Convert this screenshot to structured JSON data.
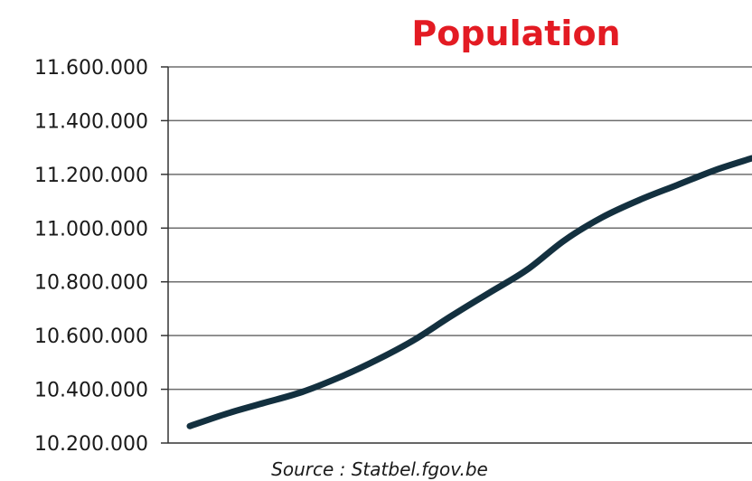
{
  "chart_data": {
    "type": "line",
    "title": "Population",
    "xlabel": "",
    "ylabel": "",
    "source": "Source : Statbel.fgov.be",
    "ylim": [
      10200000,
      11600000
    ],
    "yticks": [
      10200000,
      10400000,
      10600000,
      10800000,
      11000000,
      11200000,
      11400000,
      11600000
    ],
    "ytick_labels": [
      "10.200.000",
      "10.400.000",
      "10.600.000",
      "10.800.000",
      "11.000.000",
      "11.200.000",
      "11.400.000",
      "11.600.000"
    ],
    "grid": true,
    "legend": "none",
    "series": [
      {
        "values": [
          10263000,
          10310000,
          10350000,
          10390000,
          10445000,
          10510000,
          10585000,
          10675000,
          10760000,
          10845000,
          10955000,
          11040000,
          11105000,
          11160000,
          11215000,
          11260000
        ]
      }
    ]
  },
  "colors": {
    "title": "#e31b23",
    "line": "#13303f",
    "grid": "#6e6e6e",
    "axis": "#333333"
  }
}
